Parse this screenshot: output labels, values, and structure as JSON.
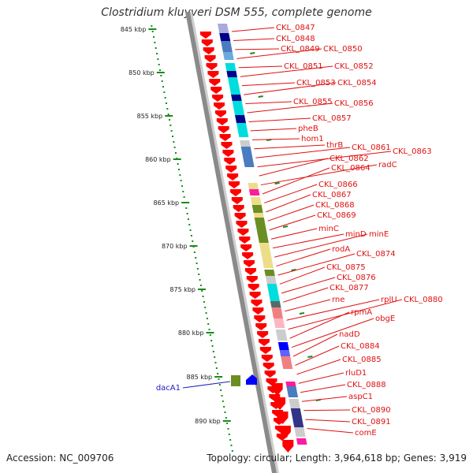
{
  "title": "Clostridium kluyveri DSM 555, complete genome",
  "accession_text": "Accession: NC_009706",
  "summary_text": "Topology: circular; Length: 3,964,618 bp; Genes: 3,919",
  "colors": {
    "forward_arrow": "#ff0000",
    "reverse_arrow": "#0000ff",
    "leader_red": "#e01010",
    "leader_blue": "#2020c0",
    "ruler": "#1a8a1a"
  },
  "ruler_ticks": [
    "845 kbp",
    "850 kbp",
    "855 kbp",
    "860 kbp",
    "865 kbp",
    "870 kbp",
    "875 kbp",
    "880 kbp",
    "885 kbp",
    "890 kbp"
  ],
  "gene_labels": [
    "CKL_0847",
    "CKL_0848",
    "CKL_0849",
    "CKL_0850",
    "CKL_0851",
    "CKL_0852",
    "CKL_0853",
    "CKL_0854",
    "CKL_0855",
    "CKL_0856",
    "CKL_0857",
    "pheB",
    "hom1",
    "thrB",
    "CKL_0861",
    "CKL_0863",
    "CKL_0862",
    "radC",
    "CKL_0864",
    "CKL_0866",
    "CKL_0867",
    "CKL_0868",
    "CKL_0869",
    "minC",
    "minD",
    "minE",
    "rodA",
    "CKL_0874",
    "CKL_0875",
    "CKL_0876",
    "CKL_0877",
    "rne",
    "rplU",
    "CKL_0880",
    "rpmA",
    "obgE",
    "nadD",
    "CKL_0884",
    "CKL_0885",
    "rluD1",
    "CKL_0888",
    "aspC1",
    "CKL_0890",
    "CKL_0891",
    "comE"
  ],
  "left_gene_label": "dacA1"
}
